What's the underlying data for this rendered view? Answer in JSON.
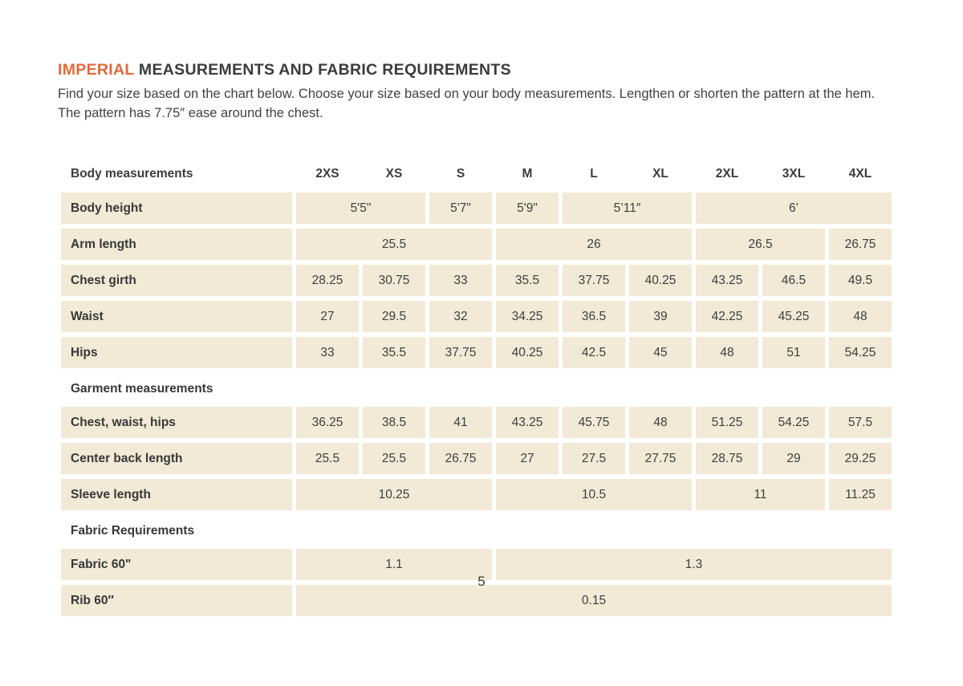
{
  "page": {
    "title_highlight": "IMPERIAL",
    "title_rest": " MEASUREMENTS AND FABRIC REQUIREMENTS",
    "intro": "Find your size based on the chart below. Choose your size based on your body measurements. Lengthen or shorten the pattern at the hem. The pattern has 7.75″ ease around the chest.",
    "page_number": "5"
  },
  "colors": {
    "accent_orange": "#e2693c",
    "cell_background": "#f2e9d6",
    "text": "#3b3b3b"
  },
  "table": {
    "header_label": "Body measurements",
    "sizes": [
      "2XS",
      "XS",
      "S",
      "M",
      "L",
      "XL",
      "2XL",
      "3XL",
      "4XL"
    ],
    "sections": [
      {
        "title": "",
        "rows": [
          {
            "label": "Body height",
            "cells": [
              {
                "v": "5'5\"",
                "span": 2
              },
              {
                "v": "5'7\"",
                "span": 1
              },
              {
                "v": "5'9\"",
                "span": 1
              },
              {
                "v": "5’11″",
                "span": 2
              },
              {
                "v": "6’",
                "span": 3
              }
            ]
          },
          {
            "label": "Arm length",
            "cells": [
              {
                "v": "25.5",
                "span": 3
              },
              {
                "v": "26",
                "span": 3
              },
              {
                "v": "26.5",
                "span": 2
              },
              {
                "v": "26.75",
                "span": 1
              }
            ]
          },
          {
            "label": "Chest girth",
            "cells": [
              {
                "v": "28.25",
                "span": 1
              },
              {
                "v": "30.75",
                "span": 1
              },
              {
                "v": "33",
                "span": 1
              },
              {
                "v": "35.5",
                "span": 1
              },
              {
                "v": "37.75",
                "span": 1
              },
              {
                "v": "40.25",
                "span": 1
              },
              {
                "v": "43.25",
                "span": 1
              },
              {
                "v": "46.5",
                "span": 1
              },
              {
                "v": "49.5",
                "span": 1
              }
            ]
          },
          {
            "label": "Waist",
            "cells": [
              {
                "v": "27",
                "span": 1
              },
              {
                "v": "29.5",
                "span": 1
              },
              {
                "v": "32",
                "span": 1
              },
              {
                "v": "34.25",
                "span": 1
              },
              {
                "v": "36.5",
                "span": 1
              },
              {
                "v": "39",
                "span": 1
              },
              {
                "v": "42.25",
                "span": 1
              },
              {
                "v": "45.25",
                "span": 1
              },
              {
                "v": "48",
                "span": 1
              }
            ]
          },
          {
            "label": "Hips",
            "cells": [
              {
                "v": "33",
                "span": 1
              },
              {
                "v": "35.5",
                "span": 1
              },
              {
                "v": "37.75",
                "span": 1
              },
              {
                "v": "40.25",
                "span": 1
              },
              {
                "v": "42.5",
                "span": 1
              },
              {
                "v": "45",
                "span": 1
              },
              {
                "v": "48",
                "span": 1
              },
              {
                "v": "51",
                "span": 1
              },
              {
                "v": "54.25",
                "span": 1
              }
            ]
          }
        ]
      },
      {
        "title": "Garment measurements",
        "rows": [
          {
            "label": "Chest, waist, hips",
            "cells": [
              {
                "v": "36.25",
                "span": 1
              },
              {
                "v": "38.5",
                "span": 1
              },
              {
                "v": "41",
                "span": 1
              },
              {
                "v": "43.25",
                "span": 1
              },
              {
                "v": "45.75",
                "span": 1
              },
              {
                "v": "48",
                "span": 1
              },
              {
                "v": "51.25",
                "span": 1
              },
              {
                "v": "54.25",
                "span": 1
              },
              {
                "v": "57.5",
                "span": 1
              }
            ]
          },
          {
            "label": "Center back length",
            "cells": [
              {
                "v": "25.5",
                "span": 1
              },
              {
                "v": "25.5",
                "span": 1
              },
              {
                "v": "26.75",
                "span": 1
              },
              {
                "v": "27",
                "span": 1
              },
              {
                "v": "27.5",
                "span": 1
              },
              {
                "v": "27.75",
                "span": 1
              },
              {
                "v": "28.75",
                "span": 1
              },
              {
                "v": "29",
                "span": 1
              },
              {
                "v": "29.25",
                "span": 1
              }
            ]
          },
          {
            "label": "Sleeve length",
            "cells": [
              {
                "v": "10.25",
                "span": 3
              },
              {
                "v": "10.5",
                "span": 3
              },
              {
                "v": "11",
                "span": 2
              },
              {
                "v": "11.25",
                "span": 1
              }
            ]
          }
        ]
      },
      {
        "title": "Fabric Requirements",
        "rows": [
          {
            "label": "Fabric 60\"",
            "cells": [
              {
                "v": "1.1",
                "span": 3
              },
              {
                "v": "1.3",
                "span": 6
              }
            ]
          },
          {
            "label": "Rib 60″",
            "cells": [
              {
                "v": "0.15",
                "span": 9
              }
            ]
          }
        ]
      }
    ]
  }
}
